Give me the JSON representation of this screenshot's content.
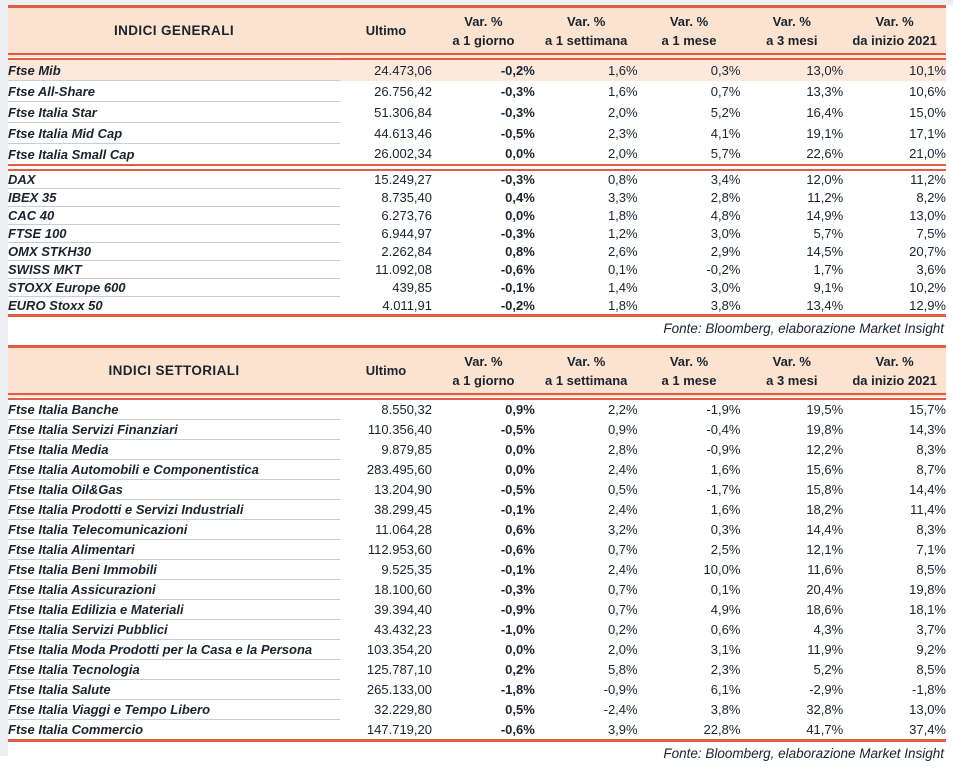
{
  "colors": {
    "accent_red": "#E25C44",
    "header_bg": "#FBE3D0",
    "highlight_row_bg": "#FCE9DC",
    "text": "#1A232E",
    "row_separator": "#C9CDD3"
  },
  "tables": [
    {
      "title": "INDICI GENERALI",
      "columns": {
        "ultimo": "Ultimo",
        "vars": [
          {
            "line1": "Var. %",
            "line2": "a 1 giorno"
          },
          {
            "line1": "Var. %",
            "line2": "a 1 settimana"
          },
          {
            "line1": "Var. %",
            "line2": "a 1 mese"
          },
          {
            "line1": "Var. %",
            "line2": "a 3 mesi"
          },
          {
            "line1": "Var. %",
            "line2": "da inizio 2021"
          }
        ]
      },
      "groups": [
        {
          "rows": [
            {
              "name": "Ftse Mib",
              "ultimo": "24.473,06",
              "vars": [
                "-0,2%",
                "1,6%",
                "0,3%",
                "13,0%",
                "10,1%"
              ],
              "highlight": true
            },
            {
              "name": "Ftse All-Share",
              "ultimo": "26.756,42",
              "vars": [
                "-0,3%",
                "1,6%",
                "0,7%",
                "13,3%",
                "10,6%"
              ]
            },
            {
              "name": "Ftse Italia Star",
              "ultimo": "51.306,84",
              "vars": [
                "-0,3%",
                "2,0%",
                "5,2%",
                "16,4%",
                "15,0%"
              ]
            },
            {
              "name": "Ftse Italia Mid Cap",
              "ultimo": "44.613,46",
              "vars": [
                "-0,5%",
                "2,3%",
                "4,1%",
                "19,1%",
                "17,1%"
              ]
            },
            {
              "name": "Ftse Italia Small Cap",
              "ultimo": "26.002,34",
              "vars": [
                "0,0%",
                "2,0%",
                "5,7%",
                "22,6%",
                "21,0%"
              ]
            }
          ]
        },
        {
          "rows": [
            {
              "name": "DAX",
              "ultimo": "15.249,27",
              "vars": [
                "-0,3%",
                "0,8%",
                "3,4%",
                "12,0%",
                "11,2%"
              ]
            },
            {
              "name": "IBEX 35",
              "ultimo": "8.735,40",
              "vars": [
                "0,4%",
                "3,3%",
                "2,8%",
                "11,2%",
                "8,2%"
              ]
            },
            {
              "name": "CAC 40",
              "ultimo": "6.273,76",
              "vars": [
                "0,0%",
                "1,8%",
                "4,8%",
                "14,9%",
                "13,0%"
              ]
            },
            {
              "name": "FTSE 100",
              "ultimo": "6.944,97",
              "vars": [
                "-0,3%",
                "1,2%",
                "3,0%",
                "5,7%",
                "7,5%"
              ]
            },
            {
              "name": "OMX STKH30",
              "ultimo": "2.262,84",
              "vars": [
                "0,8%",
                "2,6%",
                "2,9%",
                "14,5%",
                "20,7%"
              ]
            },
            {
              "name": "SWISS MKT",
              "ultimo": "11.092,08",
              "vars": [
                "-0,6%",
                "0,1%",
                "-0,2%",
                "1,7%",
                "3,6%"
              ]
            },
            {
              "name": "STOXX Europe 600",
              "ultimo": "439,85",
              "vars": [
                "-0,1%",
                "1,4%",
                "3,0%",
                "9,1%",
                "10,2%"
              ]
            },
            {
              "name": "EURO Stoxx 50",
              "ultimo": "4.011,91",
              "vars": [
                "-0,2%",
                "1,8%",
                "3,8%",
                "13,4%",
                "12,9%"
              ]
            }
          ]
        }
      ],
      "fonte": "Fonte: Bloomberg, elaborazione Market Insight"
    },
    {
      "title": "INDICI SETTORIALI",
      "columns": {
        "ultimo": "Ultimo",
        "vars": [
          {
            "line1": "Var. %",
            "line2": "a 1 giorno"
          },
          {
            "line1": "Var. %",
            "line2": "a 1 settimana"
          },
          {
            "line1": "Var. %",
            "line2": "a 1 mese"
          },
          {
            "line1": "Var. %",
            "line2": "a 3 mesi"
          },
          {
            "line1": "Var. %",
            "line2": "da inizio 2021"
          }
        ]
      },
      "groups": [
        {
          "rows": [
            {
              "name": "Ftse Italia Banche",
              "ultimo": "8.550,32",
              "vars": [
                "0,9%",
                "2,2%",
                "-1,9%",
                "19,5%",
                "15,7%"
              ]
            },
            {
              "name": "Ftse Italia Servizi Finanziari",
              "ultimo": "110.356,40",
              "vars": [
                "-0,5%",
                "0,9%",
                "-0,4%",
                "19,8%",
                "14,3%"
              ]
            },
            {
              "name": "Ftse Italia Media",
              "ultimo": "9.879,85",
              "vars": [
                "0,0%",
                "2,8%",
                "-0,9%",
                "12,2%",
                "8,3%"
              ]
            },
            {
              "name": "Ftse Italia Automobili e Componentistica",
              "ultimo": "283.495,60",
              "vars": [
                "0,0%",
                "2,4%",
                "1,6%",
                "15,6%",
                "8,7%"
              ]
            },
            {
              "name": "Ftse Italia Oil&Gas",
              "ultimo": "13.204,90",
              "vars": [
                "-0,5%",
                "0,5%",
                "-1,7%",
                "15,8%",
                "14,4%"
              ]
            },
            {
              "name": "Ftse Italia Prodotti e Servizi Industriali",
              "ultimo": "38.299,45",
              "vars": [
                "-0,1%",
                "2,4%",
                "1,6%",
                "18,2%",
                "11,4%"
              ]
            },
            {
              "name": "Ftse Italia Telecomunicazioni",
              "ultimo": "11.064,28",
              "vars": [
                "0,6%",
                "3,2%",
                "0,3%",
                "14,4%",
                "8,3%"
              ]
            },
            {
              "name": "Ftse Italia Alimentari",
              "ultimo": "112.953,60",
              "vars": [
                "-0,6%",
                "0,7%",
                "2,5%",
                "12,1%",
                "7,1%"
              ]
            },
            {
              "name": "Ftse Italia Beni Immobili",
              "ultimo": "9.525,35",
              "vars": [
                "-0,1%",
                "2,4%",
                "10,0%",
                "11,6%",
                "8,5%"
              ]
            },
            {
              "name": "Ftse Italia Assicurazioni",
              "ultimo": "18.100,60",
              "vars": [
                "-0,3%",
                "0,7%",
                "0,1%",
                "20,4%",
                "19,8%"
              ]
            },
            {
              "name": "Ftse Italia Edilizia e Materiali",
              "ultimo": "39.394,40",
              "vars": [
                "-0,9%",
                "0,7%",
                "4,9%",
                "18,6%",
                "18,1%"
              ]
            },
            {
              "name": "Ftse Italia Servizi Pubblici",
              "ultimo": "43.432,23",
              "vars": [
                "-1,0%",
                "0,2%",
                "0,6%",
                "4,3%",
                "3,7%"
              ]
            },
            {
              "name": "Ftse Italia Moda Prodotti per la Casa e la Persona",
              "ultimo": "103.354,20",
              "vars": [
                "0,0%",
                "2,0%",
                "3,1%",
                "11,9%",
                "9,2%"
              ]
            },
            {
              "name": "Ftse Italia Tecnologia",
              "ultimo": "125.787,10",
              "vars": [
                "0,2%",
                "5,8%",
                "2,3%",
                "5,2%",
                "8,5%"
              ]
            },
            {
              "name": "Ftse Italia Salute",
              "ultimo": "265.133,00",
              "vars": [
                "-1,8%",
                "-0,9%",
                "6,1%",
                "-2,9%",
                "-1,8%"
              ]
            },
            {
              "name": "Ftse Italia Viaggi e Tempo Libero",
              "ultimo": "32.229,80",
              "vars": [
                "0,5%",
                "-2,4%",
                "3,8%",
                "32,8%",
                "13,0%"
              ]
            },
            {
              "name": "Ftse Italia Commercio",
              "ultimo": "147.719,20",
              "vars": [
                "-0,6%",
                "3,9%",
                "22,8%",
                "41,7%",
                "37,4%"
              ]
            }
          ]
        }
      ],
      "fonte": "Fonte: Bloomberg, elaborazione Market Insight"
    }
  ]
}
